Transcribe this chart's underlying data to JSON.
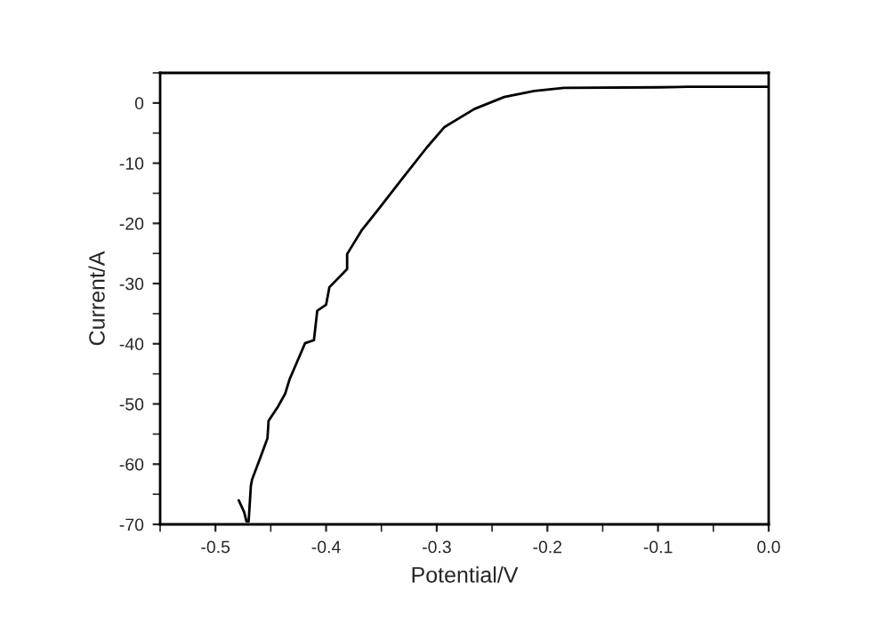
{
  "chart_data": {
    "type": "line",
    "xlabel": "Potential/V",
    "ylabel": "Current/A",
    "xlim": [
      -0.55,
      0.0
    ],
    "xticks": [
      {
        "value": -0.5,
        "label": "-0.5"
      },
      {
        "value": -0.4,
        "label": "-0.4"
      },
      {
        "value": -0.3,
        "label": "-0.3"
      },
      {
        "value": -0.2,
        "label": "-0.2"
      },
      {
        "value": -0.1,
        "label": "-0.1"
      },
      {
        "value": 0.0,
        "label": "0.0"
      }
    ],
    "ylim": [
      -70,
      5
    ],
    "yticks": [
      {
        "value": -70,
        "label": "-70"
      },
      {
        "value": -60,
        "label": "-60"
      },
      {
        "value": -50,
        "label": "-50"
      },
      {
        "value": -40,
        "label": "-40"
      },
      {
        "value": -30,
        "label": "-30"
      },
      {
        "value": -20,
        "label": "-20"
      },
      {
        "value": -10,
        "label": "-10"
      },
      {
        "value": 0,
        "label": "0"
      }
    ],
    "grid": false,
    "legend": false,
    "marker": "none",
    "line_style": "solid",
    "series": [
      {
        "color": "#000000",
        "x": [
          -0.479,
          -0.474,
          -0.472,
          -0.47,
          -0.468,
          -0.467,
          -0.459,
          -0.453,
          -0.452,
          -0.444,
          -0.437,
          -0.433,
          -0.426,
          -0.419,
          -0.411,
          -0.408,
          -0.4,
          -0.397,
          -0.381,
          -0.381,
          -0.368,
          -0.352,
          -0.33,
          -0.309,
          -0.293,
          -0.266,
          -0.239,
          -0.212,
          -0.185,
          -0.1,
          -0.073,
          0.0
        ],
        "values": [
          -66,
          -68,
          -69.5,
          -69.5,
          -63.6,
          -62.6,
          -58.7,
          -55.7,
          -52.8,
          -50.6,
          -48.3,
          -45.9,
          -42.9,
          -39.9,
          -39.4,
          -34.5,
          -33.5,
          -30.6,
          -27.6,
          -25.1,
          -21.2,
          -17.5,
          -12.3,
          -7.4,
          -4.0,
          -1.0,
          1.0,
          2.0,
          2.5,
          2.6,
          2.7,
          2.7
        ]
      }
    ]
  }
}
